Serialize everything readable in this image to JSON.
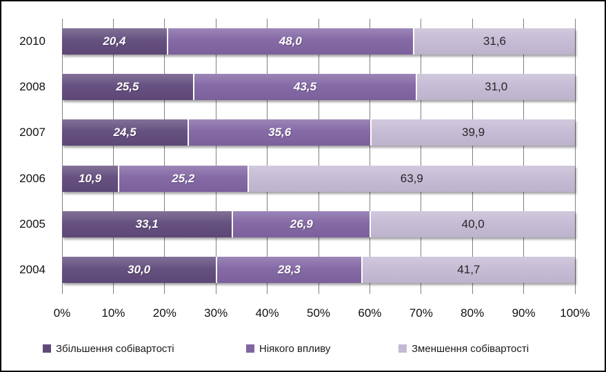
{
  "figure": {
    "background": "#FFFFFF",
    "border_color": "#000000",
    "gridline_color": "#808080"
  },
  "chart_data": {
    "type": "bar",
    "variant": "horizontal-stacked-100",
    "title": "",
    "xlabel": "",
    "ylabel": "",
    "categories": [
      "2010",
      "2008",
      "2007",
      "2006",
      "2005",
      "2004"
    ],
    "series": [
      {
        "name": "Збільшення собівартості",
        "color": "#604A7B",
        "label_style": "white-bold-italic",
        "values": [
          20.4,
          25.5,
          24.5,
          10.9,
          33.1,
          30.0
        ],
        "labels": [
          "20,4",
          "25,5",
          "24,5",
          "10,9",
          "33,1",
          "30,0"
        ]
      },
      {
        "name": "Ніякого впливу",
        "color": "#8064A2",
        "label_style": "white-bold-italic",
        "values": [
          48.0,
          43.5,
          35.6,
          25.2,
          26.9,
          28.3
        ],
        "labels": [
          "48,0",
          "43,5",
          "35,6",
          "25,2",
          "26,9",
          "28,3"
        ]
      },
      {
        "name": "Зменшення собівартості",
        "color": "#C4BAD4",
        "label_style": "dark-regular",
        "values": [
          31.6,
          31.0,
          39.9,
          63.9,
          40.0,
          41.7
        ],
        "labels": [
          "31,6",
          "31,0",
          "39,9",
          "63,9",
          "40,0",
          "41,7"
        ]
      }
    ],
    "x_axis": {
      "min": 0,
      "max": 100,
      "tick_step": 10,
      "tick_labels": [
        "0%",
        "10%",
        "20%",
        "30%",
        "40%",
        "50%",
        "60%",
        "70%",
        "80%",
        "90%",
        "100%"
      ]
    },
    "grid": "vertical",
    "legend_position": "bottom"
  }
}
